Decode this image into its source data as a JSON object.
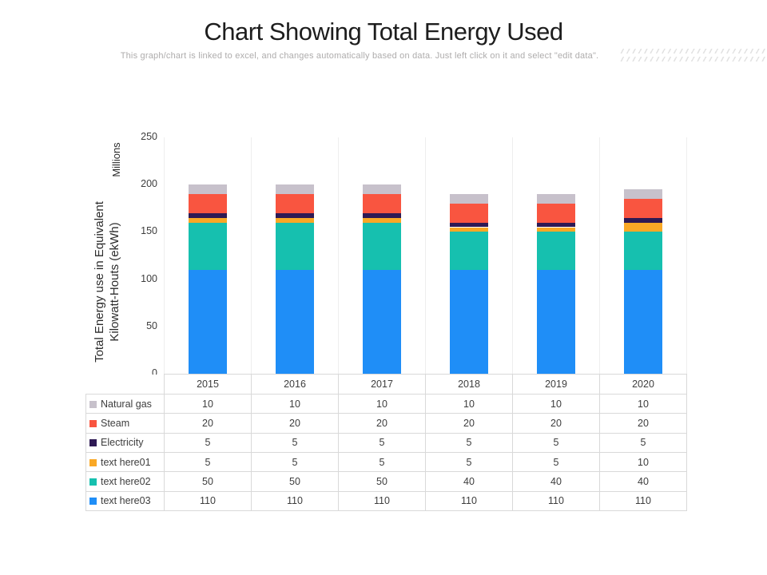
{
  "header": {
    "title": "Chart Showing Total Energy Used",
    "subtitle": "This graph/chart is linked to excel, and changes automatically  based on data. Just left click on it and select \"edit data\"."
  },
  "chart_data": {
    "type": "bar",
    "stacked": true,
    "title": "Chart Showing Total Energy Used",
    "categories": [
      "2015",
      "2016",
      "2017",
      "2018",
      "2019",
      "2020"
    ],
    "series": [
      {
        "name": "Natural gas",
        "color": "#c7c1cb",
        "values": [
          10,
          10,
          10,
          10,
          10,
          10
        ]
      },
      {
        "name": "Steam",
        "color": "#f95540",
        "values": [
          20,
          20,
          20,
          20,
          20,
          20
        ]
      },
      {
        "name": "Electricity",
        "color": "#2e1a54",
        "values": [
          5,
          5,
          5,
          5,
          5,
          5
        ]
      },
      {
        "name": "text here01",
        "color": "#f9a826",
        "values": [
          5,
          5,
          5,
          5,
          5,
          10
        ]
      },
      {
        "name": "text here02",
        "color": "#16c0af",
        "values": [
          50,
          50,
          50,
          40,
          40,
          40
        ]
      },
      {
        "name": "text here03",
        "color": "#1f8ef7",
        "values": [
          110,
          110,
          110,
          110,
          110,
          110
        ]
      }
    ],
    "xlabel": "",
    "ylabel": "Total Energy use in Equivalent Kilowatt-Houts (ekWh)",
    "ylabel_lines": [
      "Total Energy use in Equivalent",
      "Kilowatt-Houts (ekWh)"
    ],
    "units_label": "Millions",
    "yticks": [
      0,
      50,
      100,
      150,
      200,
      250
    ],
    "ylim": [
      0,
      250
    ],
    "grid": "vertical-category-separators",
    "legend_position": "table-left-column",
    "totals": [
      200,
      200,
      200,
      190,
      190,
      195
    ]
  }
}
